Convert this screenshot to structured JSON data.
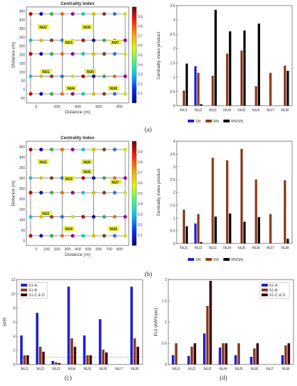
{
  "panels": {
    "a": "(a)",
    "b": "(b)",
    "c": "(c)",
    "d": "(d)"
  },
  "chart_data": [
    {
      "id": "a-map",
      "type": "scatter",
      "title": "Centrality Index",
      "xlabel": "Distance (m)",
      "ylabel": "Distance (m)",
      "xticks": [
        "0",
        "200",
        "400",
        "600",
        "800"
      ],
      "yticks": [
        "-50",
        "0",
        "50",
        "100",
        "150",
        "200",
        "250",
        "300",
        "350",
        "400",
        "450"
      ],
      "xlim": [
        -100,
        900
      ],
      "ylim": [
        -50,
        480
      ],
      "colorbar": {
        "ticks": [
          "0.1",
          "0.2",
          "0.3",
          "0.4",
          "0.5",
          "0.6",
          "0.7",
          "0.8",
          "0.9"
        ]
      },
      "zones": [
        "NU2",
        "NU6",
        "NU3",
        "NU7",
        "NU1",
        "NU5",
        "NU4",
        "NU8"
      ]
    },
    {
      "id": "a-bars",
      "type": "bar",
      "xlabel": "",
      "ylabel": "Centrality index product",
      "categories": [
        "NU1",
        "NU2",
        "NU3",
        "NU4",
        "NU5",
        "NU6",
        "NU7",
        "NU8"
      ],
      "ylim": [
        0,
        3.5
      ],
      "yticks": [
        "0",
        "0.5",
        "1",
        "1.5",
        "2",
        "2.5",
        "3",
        "3.5"
      ],
      "series": [
        {
          "name": "SN",
          "color": "#1f1fd0",
          "values": [
            0,
            1.38,
            0,
            0,
            0,
            0,
            0,
            0
          ]
        },
        {
          "name": "RN",
          "color": "#8b3a1a",
          "values": [
            0.53,
            1.15,
            1.05,
            1.82,
            1.93,
            0.68,
            1.15,
            1.4
          ]
        },
        {
          "name": "RN/SN",
          "color": "#000000",
          "values": [
            1.47,
            0.05,
            3.35,
            2.6,
            2.63,
            2.87,
            0,
            1.22
          ]
        }
      ]
    },
    {
      "id": "b-map",
      "type": "scatter",
      "title": "Centrality Index",
      "xlabel": "Distance (m)",
      "ylabel": "Distance (m)",
      "xticks": [
        "0",
        "100",
        "200",
        "300",
        "400",
        "500",
        "600",
        "700",
        "800"
      ],
      "yticks": [
        "0",
        "50",
        "100",
        "150",
        "200",
        "250",
        "300",
        "350",
        "400",
        "450"
      ],
      "xlim": [
        -100,
        900
      ],
      "ylim": [
        -30,
        480
      ],
      "colorbar": {
        "ticks": [
          "0.1",
          "0.2",
          "0.3",
          "0.4",
          "0.5",
          "0.6",
          "0.7",
          "0.8",
          "0.9"
        ]
      },
      "zones": [
        "NU2",
        "NU6",
        "NU5",
        "NU3",
        "NU7",
        "NU1",
        "NU4",
        "NU8"
      ]
    },
    {
      "id": "b-bars",
      "type": "bar",
      "xlabel": "",
      "ylabel": "Centrality index product",
      "categories": [
        "NU1",
        "NU2",
        "NU3",
        "NU4",
        "NU5",
        "NU6",
        "NU7",
        "NU8"
      ],
      "ylim": [
        0,
        4
      ],
      "yticks": [
        "0",
        "0.5",
        "1",
        "1.5",
        "2",
        "2.5",
        "3",
        "3.5",
        "4"
      ],
      "series": [
        {
          "name": "SN",
          "color": "#1f1fd0",
          "values": [
            0,
            0.78,
            0,
            0,
            0,
            0,
            0,
            0
          ]
        },
        {
          "name": "RN",
          "color": "#8b3a1a",
          "values": [
            1.32,
            1.15,
            3.35,
            3.25,
            3.7,
            2.5,
            1.15,
            2.47
          ]
        },
        {
          "name": "RN/SN",
          "color": "#000000",
          "values": [
            0.67,
            0.05,
            1.05,
            1.17,
            0.85,
            1.03,
            0,
            0.18
          ]
        }
      ]
    },
    {
      "id": "c-bars",
      "type": "bar",
      "xlabel": "",
      "ylabel": "SPR",
      "categories": [
        "NU1",
        "NU2",
        "NU3",
        "NU4",
        "NU5",
        "NU6",
        "NU7",
        "NU8"
      ],
      "ylim": [
        0,
        12
      ],
      "yticks": [
        "0",
        "2",
        "4",
        "6",
        "8",
        "10",
        "12"
      ],
      "reference_line": 1,
      "series": [
        {
          "name": "S1-A",
          "color": "#1f1fd0",
          "values": [
            4.1,
            7.3,
            0.5,
            11.0,
            4.1,
            6.4,
            0,
            11.0
          ]
        },
        {
          "name": "S1-B",
          "color": "#8b3a1a",
          "values": [
            1.3,
            2.5,
            0.3,
            3.7,
            1.3,
            2.1,
            0,
            3.7
          ]
        },
        {
          "name": "S1-C & D",
          "color": "#3a0010",
          "values": [
            1.3,
            1.8,
            0.2,
            2.5,
            1.3,
            1.7,
            0,
            2.5
          ]
        }
      ]
    },
    {
      "id": "d-bars",
      "type": "bar",
      "xlabel": "",
      "ylabel": "EUI (kWh/yer)",
      "categories": [
        "NU1",
        "NU2",
        "NU3",
        "NU4",
        "NU5",
        "NU6",
        "NU7",
        "NU8"
      ],
      "ylim": [
        0,
        2
      ],
      "yticks": [
        "0",
        "0.5",
        "1",
        "1.5",
        "2"
      ],
      "series": [
        {
          "name": "S1-A",
          "color": "#1f1fd0",
          "values": [
            0.22,
            0.2,
            0.73,
            0.4,
            0.22,
            0.18,
            0,
            0.22
          ]
        },
        {
          "name": "S1-B",
          "color": "#8b3a1a",
          "values": [
            0.5,
            0.42,
            1.38,
            0.5,
            0.5,
            0.38,
            0,
            0.45
          ]
        },
        {
          "name": "S1-C & D",
          "color": "#3a0010",
          "values": [
            0,
            0.5,
            1.97,
            0.5,
            0,
            0.5,
            0,
            0.5
          ]
        }
      ]
    }
  ]
}
